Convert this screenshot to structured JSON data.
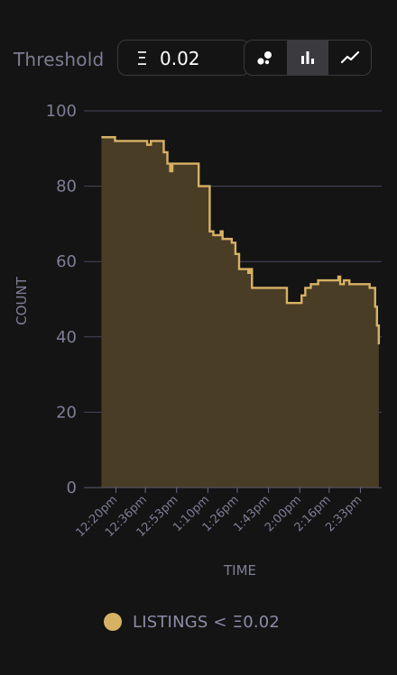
{
  "toolbar": {
    "threshold_label": "Threshold",
    "currency_symbol": "Ξ",
    "threshold_value": "0.02",
    "views": [
      {
        "icon": "scatter-icon",
        "active": false
      },
      {
        "icon": "bar-chart-icon",
        "active": true
      },
      {
        "icon": "line-chart-icon",
        "active": false
      }
    ]
  },
  "colors": {
    "accent": "#d8b264",
    "fill": "#4a3d26",
    "grid": "#46465e",
    "axis_text": "#7e7e96",
    "background": "#141414"
  },
  "legend": {
    "label": "LISTINGS < Ξ0.02"
  },
  "chart_data": {
    "type": "area",
    "step": true,
    "xlabel": "TIME",
    "ylabel": "COUNT",
    "ylim": [
      0,
      100
    ],
    "yticks": [
      0,
      20,
      40,
      60,
      80,
      100
    ],
    "x_range_minutes": [
      0,
      134
    ],
    "x_unit": "minutes after 12:20pm",
    "xtick_labels": [
      "12:20pm",
      "12:36pm",
      "12:53pm",
      "1:10pm",
      "1:26pm",
      "1:43pm",
      "2:00pm",
      "2:16pm",
      "2:33pm"
    ],
    "xtick_minutes": [
      0,
      16,
      33,
      50,
      66,
      83,
      100,
      116,
      133
    ],
    "grid": true,
    "series": [
      {
        "name": "LISTINGS < Ξ0.02",
        "points": [
          [
            -7.9,
            93
          ],
          [
            -0.5,
            93
          ],
          [
            -0.5,
            92
          ],
          [
            17,
            92
          ],
          [
            17,
            91
          ],
          [
            19,
            91
          ],
          [
            19,
            92
          ],
          [
            26,
            92
          ],
          [
            26,
            89
          ],
          [
            28,
            89
          ],
          [
            28,
            86
          ],
          [
            29.5,
            86
          ],
          [
            29.5,
            84
          ],
          [
            30.7,
            84
          ],
          [
            30.7,
            86
          ],
          [
            45,
            86
          ],
          [
            45,
            80
          ],
          [
            51,
            80
          ],
          [
            51,
            68
          ],
          [
            53,
            68
          ],
          [
            53,
            67
          ],
          [
            57,
            67
          ],
          [
            57,
            68
          ],
          [
            58,
            68
          ],
          [
            58,
            66
          ],
          [
            63,
            66
          ],
          [
            63,
            65
          ],
          [
            65,
            65
          ],
          [
            65,
            62
          ],
          [
            67,
            62
          ],
          [
            67,
            58
          ],
          [
            72,
            58
          ],
          [
            72,
            57
          ],
          [
            73,
            57
          ],
          [
            73,
            58
          ],
          [
            74,
            58
          ],
          [
            74,
            53
          ],
          [
            93,
            53
          ],
          [
            93,
            49
          ],
          [
            101,
            49
          ],
          [
            101,
            51
          ],
          [
            103,
            51
          ],
          [
            103,
            53
          ],
          [
            106,
            53
          ],
          [
            106,
            54
          ],
          [
            110,
            54
          ],
          [
            110,
            55
          ],
          [
            121,
            55
          ],
          [
            121,
            56
          ],
          [
            122,
            56
          ],
          [
            122,
            54
          ],
          [
            124,
            54
          ],
          [
            124,
            55
          ],
          [
            127,
            55
          ],
          [
            127,
            54
          ],
          [
            138,
            54
          ],
          [
            138,
            53
          ],
          [
            141,
            53
          ],
          [
            141,
            48
          ],
          [
            142,
            48
          ],
          [
            142,
            43
          ],
          [
            143,
            43
          ],
          [
            143,
            38
          ]
        ]
      }
    ]
  }
}
